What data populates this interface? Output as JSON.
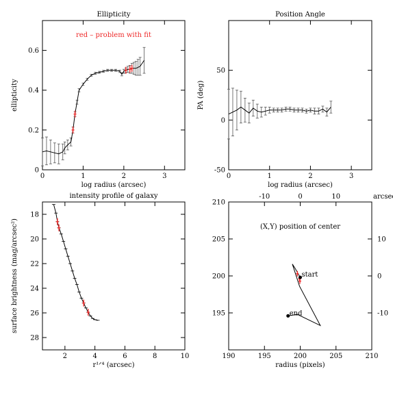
{
  "chart_data": [
    {
      "type": "line",
      "title": "Ellipticity",
      "annotation": "red – problem with fit",
      "xlabel": "log radius (arcsec)",
      "ylabel": "ellipticity",
      "xlim": [
        0,
        3.5
      ],
      "ylim": [
        0,
        0.75
      ],
      "xticks": [
        0,
        1,
        2,
        3
      ],
      "yticks": [
        0,
        0.2,
        0.4,
        0.6
      ],
      "x": [
        0.0,
        0.1,
        0.2,
        0.3,
        0.4,
        0.5,
        0.55,
        0.62,
        0.7,
        0.75,
        0.8,
        0.85,
        0.9,
        1.0,
        1.1,
        1.2,
        1.3,
        1.4,
        1.5,
        1.6,
        1.7,
        1.8,
        1.9,
        1.95,
        2.0,
        2.05,
        2.1,
        2.15,
        2.2,
        2.25,
        2.3,
        2.35,
        2.4,
        2.5
      ],
      "y": [
        0.09,
        0.095,
        0.09,
        0.085,
        0.08,
        0.09,
        0.11,
        0.125,
        0.14,
        0.2,
        0.28,
        0.34,
        0.4,
        0.43,
        0.455,
        0.475,
        0.485,
        0.49,
        0.495,
        0.5,
        0.5,
        0.5,
        0.495,
        0.48,
        0.495,
        0.5,
        0.505,
        0.505,
        0.51,
        0.51,
        0.51,
        0.515,
        0.52,
        0.55
      ],
      "err": [
        0.07,
        0.07,
        0.06,
        0.05,
        0.05,
        0.04,
        0.03,
        0.025,
        0.02,
        0.015,
        0.012,
        0.01,
        0.008,
        0.006,
        0.005,
        0.005,
        0.005,
        0.005,
        0.005,
        0.005,
        0.005,
        0.005,
        0.006,
        0.008,
        0.01,
        0.012,
        0.015,
        0.02,
        0.025,
        0.03,
        0.035,
        0.04,
        0.045,
        0.065
      ],
      "flagged": [
        0.75,
        0.8,
        2.05,
        2.15,
        2.2
      ],
      "colors": {
        "line": "#000000",
        "flag": "#ee2a2a"
      }
    },
    {
      "type": "line",
      "title": "Position Angle",
      "xlabel": "log radius (arcsec)",
      "ylabel": "PA (deg)",
      "xlim": [
        0,
        3.5
      ],
      "ylim": [
        -50,
        100
      ],
      "xticks": [
        0,
        1,
        2,
        3
      ],
      "yticks": [
        -50,
        0,
        50
      ],
      "x": [
        0.0,
        0.1,
        0.2,
        0.3,
        0.4,
        0.5,
        0.6,
        0.7,
        0.8,
        0.9,
        1.0,
        1.1,
        1.2,
        1.3,
        1.4,
        1.5,
        1.6,
        1.7,
        1.8,
        1.9,
        2.0,
        2.1,
        2.2,
        2.3,
        2.4,
        2.5
      ],
      "y": [
        6,
        8,
        10,
        13,
        10,
        7,
        12,
        9,
        8,
        9,
        10,
        10,
        10,
        10,
        11,
        11,
        10,
        10,
        10,
        9,
        10,
        9,
        9,
        11,
        8,
        13
      ],
      "err": [
        25,
        24,
        20,
        16,
        12,
        10,
        8,
        7,
        5,
        4,
        3,
        2,
        2,
        2,
        2,
        2,
        2,
        2,
        2,
        2,
        2,
        3,
        3,
        3,
        4,
        6
      ],
      "colors": {
        "line": "#000000"
      }
    },
    {
      "type": "line",
      "title": "intensity profile of galaxy",
      "xlabel": "r¹ᐟ⁴ (arcsec)",
      "ylabel": "surface brightness (mag/arcsec²)",
      "xlim": [
        0.5,
        10
      ],
      "ylim": [
        29,
        17
      ],
      "xticks": [
        2,
        4,
        6,
        8,
        10
      ],
      "yticks": [
        18,
        20,
        22,
        24,
        26,
        28
      ],
      "x": [
        1.25,
        1.4,
        1.5,
        1.6,
        1.75,
        1.9,
        2.05,
        2.2,
        2.35,
        2.5,
        2.65,
        2.8,
        2.95,
        3.1,
        3.25,
        3.4,
        3.55,
        3.7,
        3.85,
        4.0,
        4.2
      ],
      "y": [
        17.2,
        17.9,
        18.6,
        19.1,
        19.6,
        20.2,
        20.8,
        21.4,
        22.0,
        22.6,
        23.2,
        23.7,
        24.3,
        24.8,
        25.2,
        25.6,
        25.95,
        26.25,
        26.45,
        26.55,
        26.6
      ],
      "flagged": [
        1.5,
        1.6,
        3.25,
        3.55
      ],
      "colors": {
        "line": "#000000",
        "flag": "#ee2a2a"
      }
    },
    {
      "type": "line",
      "title": "(X,Y) position of center",
      "xlabel": "radius (pixels)",
      "xlim": [
        190,
        210
      ],
      "ylim": [
        190,
        210
      ],
      "xticks": [
        190,
        195,
        200,
        205,
        210
      ],
      "yticks": [
        195,
        200,
        205,
        210
      ],
      "top_ticks": [
        -10,
        0,
        10
      ],
      "right_ticks": [
        10,
        0,
        -10
      ],
      "top_axis_label": "arcsec",
      "x": [
        200.0,
        199.7,
        199.3,
        198.9,
        199.9,
        202.8,
        199.6,
        198.3
      ],
      "y": [
        199.8,
        200.3,
        201.0,
        201.6,
        198.6,
        193.3,
        194.8,
        194.6
      ],
      "flagged_points": [
        [
          199.9,
          199.6
        ],
        [
          199.95,
          199.3
        ],
        [
          199.6,
          200.3
        ]
      ],
      "start_label": "start",
      "end_label": "end",
      "colors": {
        "line": "#000000",
        "flag": "#ee2a2a"
      }
    }
  ]
}
